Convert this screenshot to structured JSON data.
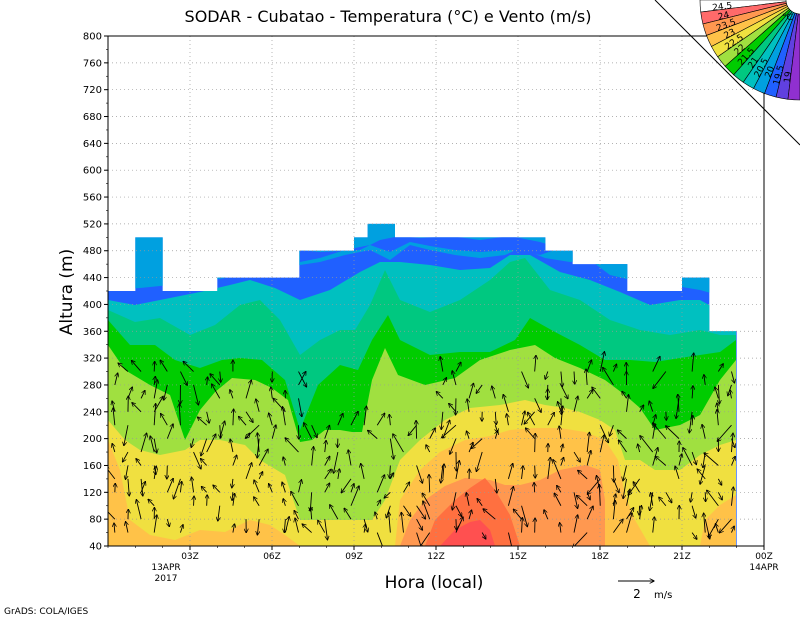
{
  "chart_data": {
    "type": "heatmap",
    "title": "SODAR - Cubatao - Temperatura (°C) e Vento (m/s)",
    "xlabel": "Hora (local)",
    "ylabel": "Altura (m)",
    "ylim": [
      40,
      800
    ],
    "yticks": [
      40,
      80,
      120,
      160,
      200,
      240,
      280,
      320,
      360,
      400,
      440,
      480,
      520,
      560,
      600,
      640,
      680,
      720,
      760,
      800
    ],
    "xlim_hours": [
      0,
      24
    ],
    "xticks": [
      {
        "hour": 3,
        "label": "03Z"
      },
      {
        "hour": 6,
        "label": "06Z"
      },
      {
        "hour": 9,
        "label": "09Z"
      },
      {
        "hour": 12,
        "label": "12Z"
      },
      {
        "hour": 15,
        "label": "15Z"
      },
      {
        "hour": 18,
        "label": "18Z"
      },
      {
        "hour": 21,
        "label": "21Z"
      },
      {
        "hour": 24,
        "label": "00Z"
      }
    ],
    "date_start": [
      "13APR",
      "2017"
    ],
    "date_end": "14APR",
    "grid": true,
    "legend": {
      "unit": "°C",
      "placement": "top-right",
      "labels": [
        "24.5",
        "24",
        "23.5",
        "23",
        "22.5",
        "22",
        "21.5",
        "21",
        "20.5",
        "20",
        "19.5",
        "19"
      ],
      "colors": [
        "#ffffff",
        "#ff6a6a",
        "#ff9850",
        "#ffc248",
        "#f0e040",
        "#a0e040",
        "#00cc00",
        "#00c880",
        "#00c0c0",
        "#00a0e0",
        "#2060ff",
        "#6040e0",
        "#9030d0"
      ]
    },
    "wind_reference": {
      "value": 2,
      "unit": "m/s"
    },
    "top_height_profile": [
      {
        "hour": 0.0,
        "top": 420
      },
      {
        "hour": 1.0,
        "top": 420
      },
      {
        "hour": 1.0,
        "top": 500
      },
      {
        "hour": 2.0,
        "top": 500
      },
      {
        "hour": 2.0,
        "top": 420
      },
      {
        "hour": 4.0,
        "top": 420
      },
      {
        "hour": 4.0,
        "top": 440
      },
      {
        "hour": 7.0,
        "top": 440
      },
      {
        "hour": 7.0,
        "top": 480
      },
      {
        "hour": 9.0,
        "top": 480
      },
      {
        "hour": 9.0,
        "top": 500
      },
      {
        "hour": 9.5,
        "top": 500
      },
      {
        "hour": 9.5,
        "top": 520
      },
      {
        "hour": 10.5,
        "top": 520
      },
      {
        "hour": 10.5,
        "top": 500
      },
      {
        "hour": 16.0,
        "top": 500
      },
      {
        "hour": 16.0,
        "top": 480
      },
      {
        "hour": 17.0,
        "top": 480
      },
      {
        "hour": 17.0,
        "top": 460
      },
      {
        "hour": 18.0,
        "top": 460
      },
      {
        "hour": 18.0,
        "top": 460
      },
      {
        "hour": 19.0,
        "top": 460
      },
      {
        "hour": 19.0,
        "top": 420
      },
      {
        "hour": 21.0,
        "top": 420
      },
      {
        "hour": 21.0,
        "top": 440
      },
      {
        "hour": 22.0,
        "top": 440
      },
      {
        "hour": 22.0,
        "top": 360
      },
      {
        "hour": 23.0,
        "top": 360
      }
    ]
  },
  "footer": {
    "credit": "GrADS: COLA/IGES"
  }
}
